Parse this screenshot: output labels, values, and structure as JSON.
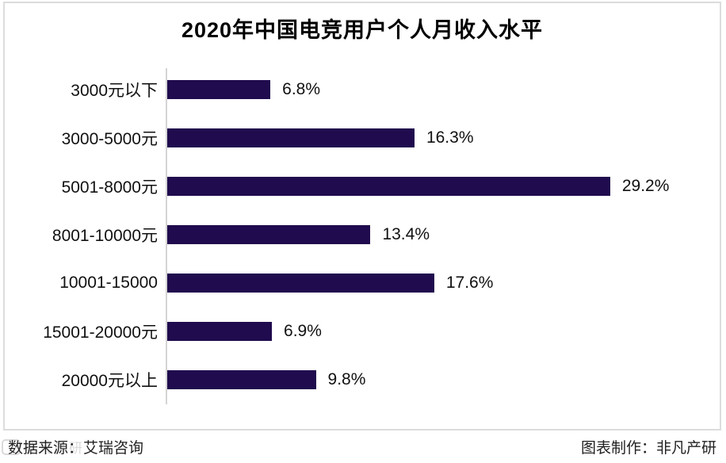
{
  "title": "2020年中国电竞用户个人月收入水平",
  "chart_data": {
    "type": "bar",
    "orientation": "horizontal",
    "title": "2020年中国电竞用户个人月收入水平",
    "categories": [
      "3000元以下",
      "3000-5000元",
      "5001-8000元",
      "8001-10000元",
      "10001-15000",
      "15001-20000元",
      "20000元以上"
    ],
    "values": [
      6.8,
      16.3,
      29.2,
      13.4,
      17.6,
      6.9,
      9.8
    ],
    "value_labels": [
      "6.8%",
      "16.3%",
      "29.2%",
      "13.4%",
      "17.6%",
      "6.9%",
      "9.8%"
    ],
    "xlabel": "",
    "ylabel": "",
    "xlim": [
      0,
      36
    ],
    "grid": false,
    "legend": false,
    "bar_color": "#200b4e"
  },
  "footer": {
    "source_label": "数据来源：艾瑞咨询",
    "credit_label": "图表制作：非凡产研"
  },
  "watermark": {
    "text": "非凡产研"
  },
  "colors": {
    "bar": "#200b4e",
    "frame_border": "#dcdcdc",
    "axis_line": "#d4d4d4",
    "title_text": "#000000",
    "label_text": "#111111",
    "footer_text": "#222222",
    "watermark": "#dadada"
  }
}
